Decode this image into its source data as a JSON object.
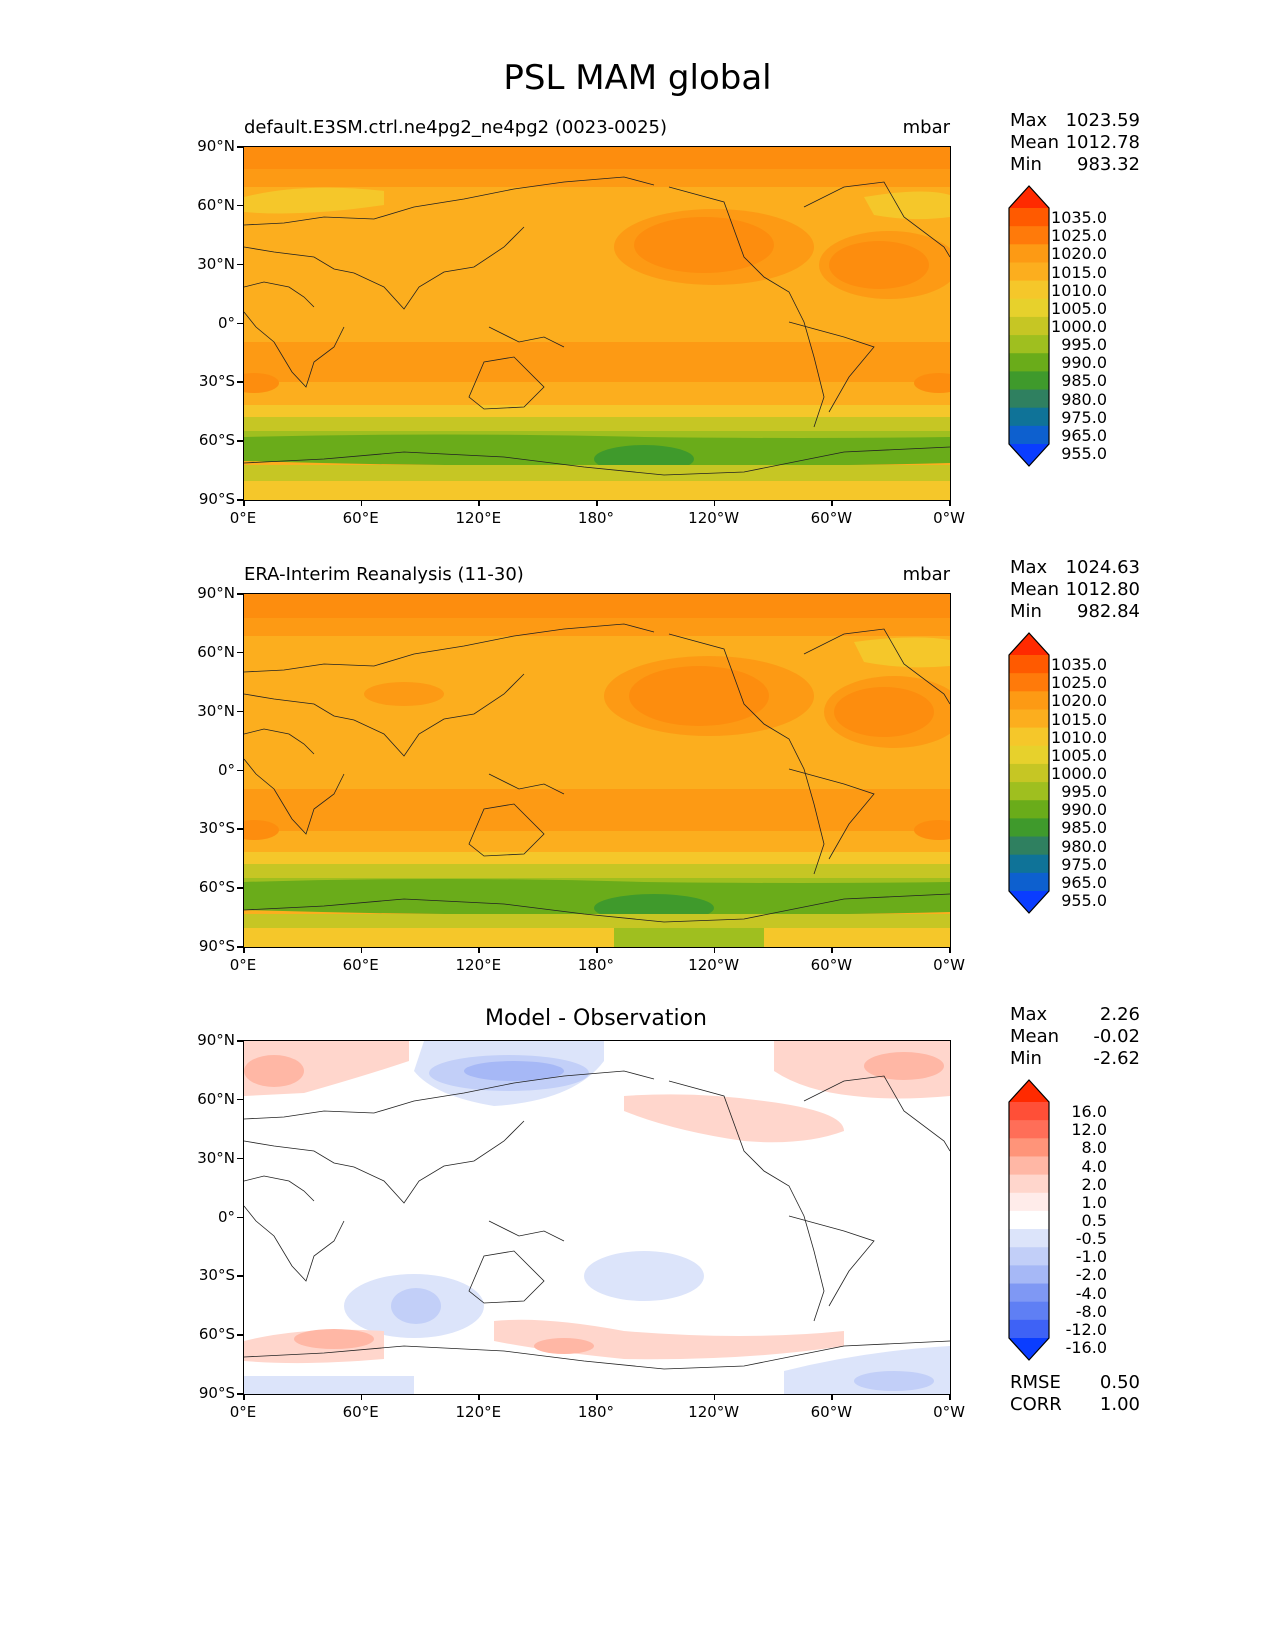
{
  "title": "PSL MAM global",
  "lat_labels": [
    "90°N",
    "60°N",
    "30°N",
    "0°",
    "30°S",
    "60°S",
    "90°S"
  ],
  "lon_labels": [
    "0°E",
    "60°E",
    "120°E",
    "180°",
    "120°W",
    "60°W",
    "0°W"
  ],
  "panels": [
    {
      "name": "test",
      "title_left": "default.E3SM.ctrl.ne4pg2_ne4pg2 (0023-0025)",
      "title_right": "mbar",
      "stats": [
        {
          "label": "Max",
          "value": "1023.59"
        },
        {
          "label": "Mean",
          "value": "1012.78"
        },
        {
          "label": "Min",
          "value": "983.32"
        }
      ],
      "colorbar_labels": [
        "1035.0",
        "1025.0",
        "1020.0",
        "1015.0",
        "1010.0",
        "1005.0",
        "1000.0",
        "995.0",
        "990.0",
        "985.0",
        "980.0",
        "975.0",
        "965.0",
        "955.0"
      ]
    },
    {
      "name": "reference",
      "title_left": "ERA-Interim Reanalysis (11-30)",
      "title_right": "mbar",
      "stats": [
        {
          "label": "Max",
          "value": "1024.63"
        },
        {
          "label": "Mean",
          "value": "1012.80"
        },
        {
          "label": "Min",
          "value": "982.84"
        }
      ],
      "colorbar_labels": [
        "1035.0",
        "1025.0",
        "1020.0",
        "1015.0",
        "1010.0",
        "1005.0",
        "1000.0",
        "995.0",
        "990.0",
        "985.0",
        "980.0",
        "975.0",
        "965.0",
        "955.0"
      ]
    },
    {
      "name": "difference",
      "title_center": "Model - Observation",
      "stats": [
        {
          "label": "Max",
          "value": "2.26"
        },
        {
          "label": "Mean",
          "value": "-0.02"
        },
        {
          "label": "Min",
          "value": "-2.62"
        }
      ],
      "colorbar_labels": [
        "16.0",
        "12.0",
        "8.0",
        "4.0",
        "2.0",
        "1.0",
        "0.5",
        "-0.5",
        "-1.0",
        "-2.0",
        "-4.0",
        "-8.0",
        "-12.0",
        "-16.0"
      ],
      "metrics": [
        {
          "label": "RMSE",
          "value": "0.50"
        },
        {
          "label": "CORR",
          "value": "1.00"
        }
      ]
    }
  ],
  "colors": {
    "abs_colorbar": [
      "#ff2a00",
      "#ff5a00",
      "#ff7a0a",
      "#fd9a14",
      "#fcae1e",
      "#f5c72a",
      "#e7d12c",
      "#c6c624",
      "#9fbf1f",
      "#6aac1a",
      "#3f9a2c",
      "#2f8060",
      "#0f7398",
      "#0d60cf",
      "#0a3dff"
    ],
    "diff_colorbar": [
      "#ff2a00",
      "#ff4f37",
      "#ff6e58",
      "#ff9479",
      "#ffb7a5",
      "#ffd6cc",
      "#ffecea",
      "#ffffff",
      "#dce4fa",
      "#c2cff8",
      "#a6b8f6",
      "#7f98f4",
      "#5f7ff4",
      "#3e62f6",
      "#0a3dff"
    ]
  }
}
